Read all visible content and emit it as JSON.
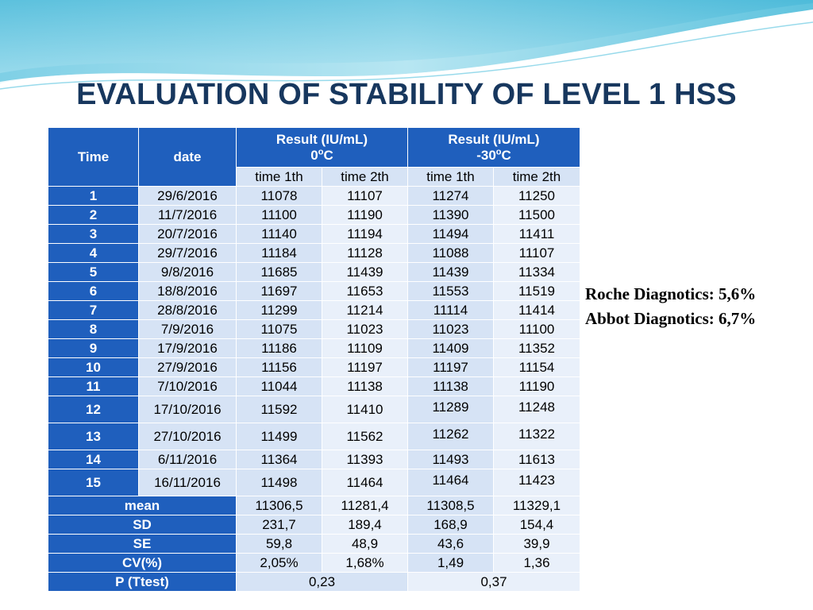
{
  "slide": {
    "title": "EVALUATION OF STABILITY OF LEVEL 1 HSS"
  },
  "table": {
    "header": {
      "time": "Time",
      "date": "date",
      "group1_line1": "Result (IU/mL)",
      "group1_temp_num": "0",
      "group1_temp_sup": "o",
      "group1_temp_unit": "C",
      "group2_line1": "Result (IU/mL)",
      "group2_temp_num": "-30",
      "group2_temp_sup": "o",
      "group2_temp_unit": "C",
      "sub": [
        "time 1th",
        "time 2th",
        "time 1th",
        "time 2th"
      ]
    },
    "rows": [
      [
        "1",
        "29/6/2016",
        "11078",
        "11107",
        "11274",
        "11250"
      ],
      [
        "2",
        "11/7/2016",
        "11100",
        "11190",
        "11390",
        "11500"
      ],
      [
        "3",
        "20/7/2016",
        "11140",
        "11194",
        "11494",
        "11411"
      ],
      [
        "4",
        "29/7/2016",
        "11184",
        "11128",
        "11088",
        "11107"
      ],
      [
        "5",
        "9/8/2016",
        "11685",
        "11439",
        "11439",
        "11334"
      ],
      [
        "6",
        "18/8/2016",
        "11697",
        "11653",
        "11553",
        "11519"
      ],
      [
        "7",
        "28/8/2016",
        "11299",
        "11214",
        "11114",
        "11414"
      ],
      [
        "8",
        "7/9/2016",
        "11075",
        "11023",
        "11023",
        "11100"
      ],
      [
        "9",
        "17/9/2016",
        "11186",
        "11109",
        "11409",
        "11352"
      ],
      [
        "10",
        "27/9/2016",
        "11156",
        "11197",
        "11197",
        "11154"
      ],
      [
        "11",
        "7/10/2016",
        "11044",
        "11138",
        "11138",
        "11190"
      ],
      [
        "12",
        "17/10/2016",
        "11592",
        "11410",
        "11289",
        "11248"
      ],
      [
        "13",
        "27/10/2016",
        "11499",
        "11562",
        "11262",
        "11322"
      ],
      [
        "14",
        "6/11/2016",
        "11364",
        "11393",
        "11493",
        "11613"
      ],
      [
        "15",
        "16/11/2016",
        "11498",
        "11464",
        "11464",
        "11423"
      ]
    ],
    "stats": [
      {
        "label": "mean",
        "values": [
          "11306,5",
          "11281,4",
          "11308,5",
          "11329,1"
        ]
      },
      {
        "label": "SD",
        "values": [
          "231,7",
          "189,4",
          "168,9",
          "154,4"
        ]
      },
      {
        "label": "SE",
        "values": [
          "59,8",
          "48,9",
          "43,6",
          "39,9"
        ]
      },
      {
        "label": "CV(%)",
        "values": [
          "2,05%",
          "1,68%",
          "1,49",
          "1,36"
        ]
      }
    ],
    "ttest": {
      "label": "P (Ttest)",
      "values": [
        "0,23",
        "0,37"
      ]
    }
  },
  "notes": {
    "roche": "Roche Diagnotics: 5,6%",
    "abbot": "Abbot Diagnotics: 6,7%"
  },
  "colors": {
    "title": "#17375e",
    "header_blue": "#1f5fbd",
    "cell_light": "#d6e3f5",
    "cell_lighter": "#e9f0fa"
  }
}
